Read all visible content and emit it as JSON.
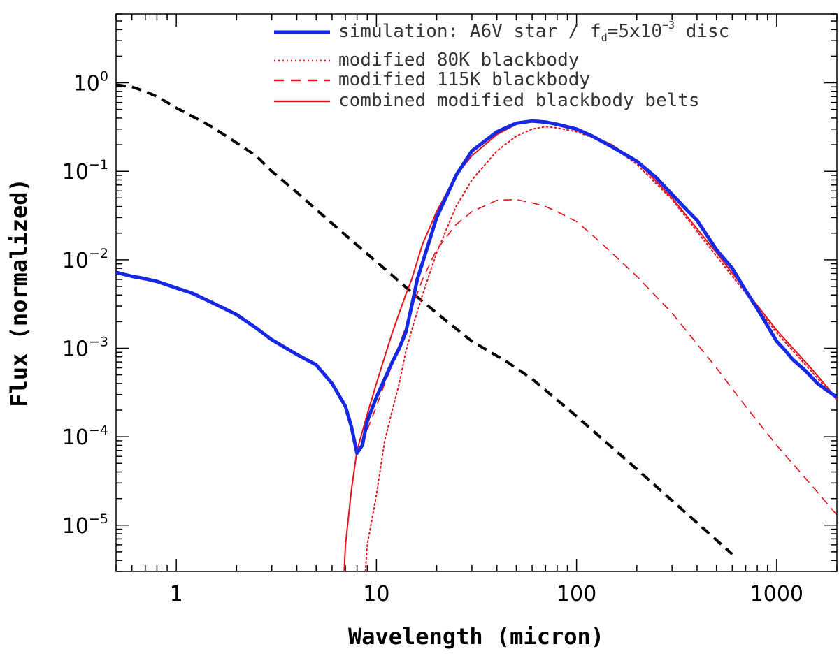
{
  "chart_data": {
    "type": "line",
    "xscale": "log",
    "yscale": "log",
    "xlim": [
      0.5,
      2000
    ],
    "ylim": [
      3e-06,
      6
    ],
    "xlabel": "Wavelength (micron)",
    "ylabel": "Flux (normalized)",
    "x_ticks": [
      {
        "value": 1,
        "label": "1"
      },
      {
        "value": 10,
        "label": "10"
      },
      {
        "value": 100,
        "label": "100"
      },
      {
        "value": 1000,
        "label": "1000"
      }
    ],
    "y_ticks": [
      {
        "value": 1,
        "base": "10",
        "exp": "0"
      },
      {
        "value": 0.1,
        "base": "10",
        "exp": "−1"
      },
      {
        "value": 0.01,
        "base": "10",
        "exp": "−2"
      },
      {
        "value": 0.001,
        "base": "10",
        "exp": "−3"
      },
      {
        "value": 0.0001,
        "base": "10",
        "exp": "−4"
      },
      {
        "value": 1e-05,
        "base": "10",
        "exp": "−5"
      }
    ],
    "legend": {
      "position": "top-right",
      "entries": [
        {
          "id": "sim",
          "label_prefix": "simulation: A6V star / f",
          "label_sub": "d",
          "label_mid": "=5x10",
          "label_sup": "−3",
          "label_suffix": " disc"
        },
        {
          "id": "bb80",
          "label": "modified 80K blackbody"
        },
        {
          "id": "bb115",
          "label": "modified 115K blackbody"
        },
        {
          "id": "combined",
          "label": "combined modified blackbody belts"
        }
      ]
    },
    "series": [
      {
        "id": "stellar",
        "name": "stellar photosphere",
        "color": "#000000",
        "style": "dashed",
        "x": [
          0.5,
          0.6,
          0.7,
          0.8,
          0.9,
          1.0,
          1.2,
          1.5,
          2.0,
          2.5,
          3.0,
          4.0,
          5.0,
          7.0,
          10,
          15,
          20,
          30,
          45,
          60,
          80,
          100,
          200,
          300,
          500,
          600
        ],
        "y": [
          0.95,
          0.9,
          0.8,
          0.7,
          0.6,
          0.52,
          0.42,
          0.32,
          0.21,
          0.15,
          0.1,
          0.058,
          0.037,
          0.019,
          0.0095,
          0.0043,
          0.0025,
          0.0012,
          0.0007,
          0.00045,
          0.00026,
          0.00017,
          4.3e-05,
          1.9e-05,
          6.8e-06,
          4.7e-06
        ]
      },
      {
        "id": "sim",
        "name": "simulation: A6V star / fd=5x10^-3 disc",
        "color": "#1428e6",
        "style": "solid",
        "x": [
          0.5,
          0.6,
          0.7,
          0.8,
          0.9,
          1.0,
          1.2,
          1.5,
          2.0,
          2.5,
          3.0,
          4.0,
          5.0,
          6.0,
          7.0,
          7.5,
          8.0,
          8.5,
          9.0,
          10,
          11,
          12,
          13,
          14,
          15,
          16,
          18,
          20,
          25,
          30,
          40,
          50,
          60,
          70,
          80,
          100,
          120,
          150,
          200,
          250,
          300,
          350,
          400,
          500,
          600,
          700,
          800,
          900,
          1000,
          1100,
          1200,
          1400,
          1600,
          1800,
          2000
        ],
        "y": [
          0.0072,
          0.0065,
          0.0061,
          0.0057,
          0.0052,
          0.0048,
          0.0042,
          0.0033,
          0.0024,
          0.0017,
          0.00125,
          0.00085,
          0.00065,
          0.0004,
          0.00022,
          0.00013,
          6.5e-05,
          8e-05,
          0.00015,
          0.00028,
          0.00045,
          0.0007,
          0.001,
          0.0015,
          0.003,
          0.006,
          0.014,
          0.03,
          0.09,
          0.17,
          0.28,
          0.35,
          0.37,
          0.36,
          0.34,
          0.3,
          0.25,
          0.19,
          0.13,
          0.085,
          0.055,
          0.038,
          0.028,
          0.013,
          0.008,
          0.0045,
          0.0028,
          0.0018,
          0.0012,
          0.00095,
          0.00075,
          0.00055,
          0.0004,
          0.00033,
          0.00028
        ]
      },
      {
        "id": "bb80",
        "name": "modified 80K blackbody",
        "color": "#e8101a",
        "style": "dotted",
        "x": [
          8.8,
          9.0,
          10,
          11,
          12,
          13,
          14,
          15,
          17,
          20,
          25,
          30,
          40,
          50,
          60,
          70,
          80,
          100,
          120,
          150,
          200,
          300,
          500,
          700,
          1000,
          1500,
          2000
        ],
        "y": [
          3e-06,
          6e-06,
          2.2e-05,
          9e-05,
          0.0002,
          0.0004,
          0.0009,
          0.0016,
          0.004,
          0.012,
          0.04,
          0.08,
          0.17,
          0.25,
          0.3,
          0.32,
          0.31,
          0.28,
          0.24,
          0.19,
          0.12,
          0.048,
          0.011,
          0.0042,
          0.0015,
          0.00054,
          0.00026
        ]
      },
      {
        "id": "bb115",
        "name": "modified 115K blackbody",
        "color": "#e8101a",
        "style": "dashed",
        "x": [
          9,
          10,
          11,
          12,
          13,
          14,
          15,
          17,
          20,
          25,
          30,
          40,
          50,
          60,
          70,
          80,
          100,
          120,
          150,
          200,
          300,
          500,
          700,
          1000,
          1500,
          2000
        ],
        "y": [
          0.00012,
          0.00022,
          0.0004,
          0.00065,
          0.0011,
          0.0017,
          0.0028,
          0.006,
          0.013,
          0.025,
          0.035,
          0.047,
          0.048,
          0.044,
          0.04,
          0.035,
          0.027,
          0.019,
          0.012,
          0.0065,
          0.0025,
          0.0006,
          0.00022,
          8e-05,
          2.8e-05,
          1.3e-05
        ]
      },
      {
        "id": "combined",
        "name": "combined modified blackbody belts",
        "color": "#e8101a",
        "style": "solid",
        "x": [
          6.9,
          7.0,
          7.5,
          8,
          9,
          10,
          11,
          12,
          13,
          14,
          15,
          17,
          20,
          25,
          30,
          40,
          50,
          60,
          70,
          80,
          100,
          120,
          150,
          200,
          300,
          500,
          700,
          1000,
          1500,
          2000
        ],
        "y": [
          3e-06,
          6e-06,
          2.5e-05,
          7e-05,
          0.00018,
          0.0004,
          0.0008,
          0.0015,
          0.0025,
          0.004,
          0.006,
          0.015,
          0.035,
          0.09,
          0.15,
          0.26,
          0.34,
          0.37,
          0.36,
          0.34,
          0.3,
          0.25,
          0.2,
          0.13,
          0.05,
          0.012,
          0.0045,
          0.0016,
          0.00058,
          0.00027
        ]
      }
    ]
  }
}
